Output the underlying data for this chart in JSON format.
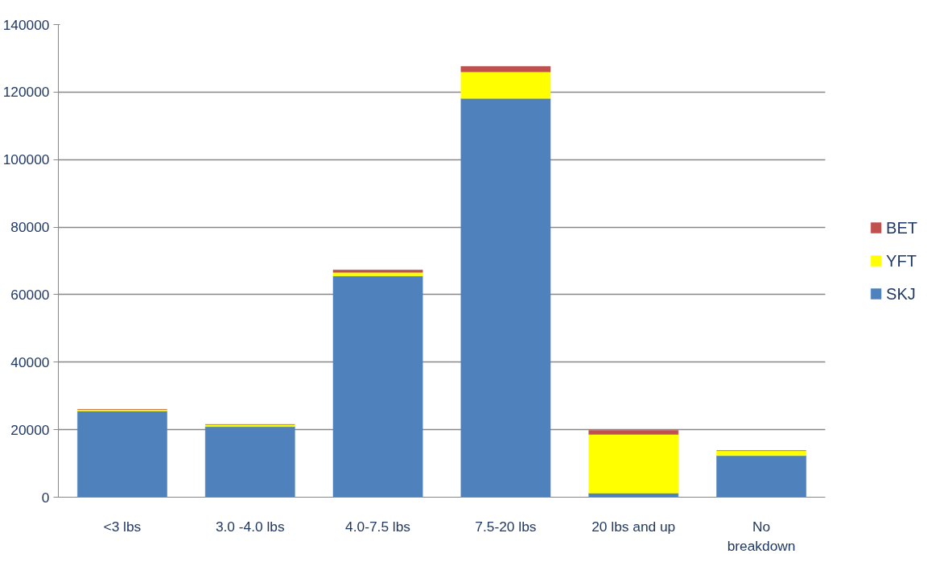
{
  "chart_data": {
    "type": "bar",
    "stacked": true,
    "categories": [
      "<3 lbs",
      "3.0 -4.0 lbs",
      "4.0-7.5 lbs",
      "7.5-20 lbs",
      "20 lbs and up",
      "No\nbreakdown"
    ],
    "series": [
      {
        "name": "SKJ",
        "color": "#4f81bd",
        "values": [
          25500,
          20900,
          65500,
          118100,
          1200,
          12300
        ]
      },
      {
        "name": "YFT",
        "color": "#ffff00",
        "values": [
          500,
          600,
          1100,
          7900,
          17400,
          1500
        ]
      },
      {
        "name": "BET",
        "color": "#c0504d",
        "values": [
          0,
          0,
          700,
          1600,
          1200,
          0
        ]
      }
    ],
    "ylim": [
      0,
      140000
    ],
    "yticks": [
      0,
      20000,
      40000,
      60000,
      80000,
      100000,
      120000,
      140000
    ],
    "grid": "y",
    "legend": "right"
  }
}
